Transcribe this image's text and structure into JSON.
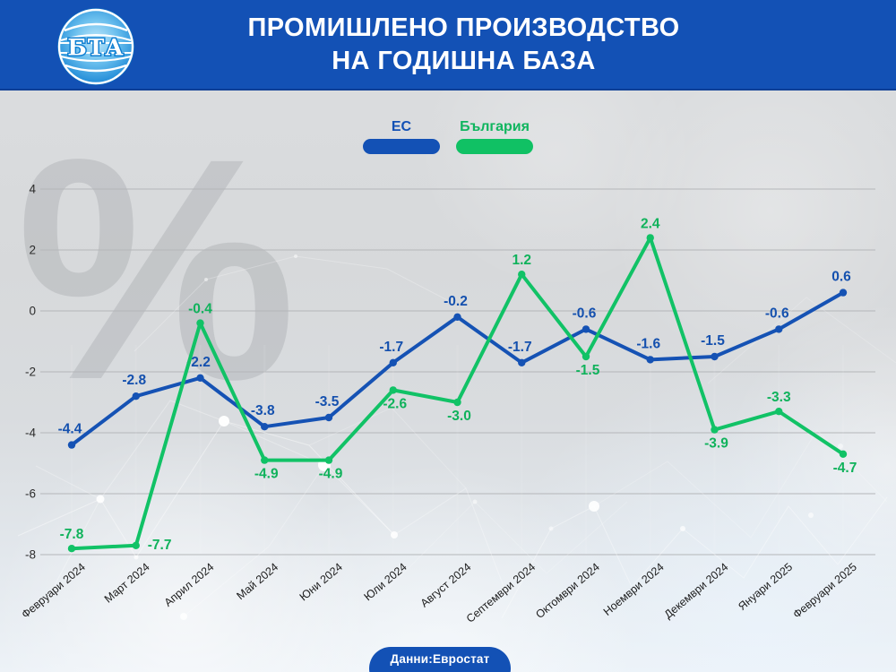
{
  "header": {
    "logo_text": "БТА",
    "title_line1": "ПРОМИШЛЕНО ПРОИЗВОДСТВО",
    "title_line2": "НА ГОДИШНА БАЗА"
  },
  "legend": [
    {
      "label": "ЕС",
      "color": "#1351b5"
    },
    {
      "label": "България",
      "color": "#10c164"
    }
  ],
  "footer": {
    "source_label": "Данни:Евростат"
  },
  "chart_data": {
    "type": "line",
    "title": "ПРОМИШЛЕНО ПРОИЗВОДСТВО НА ГОДИШНА БАЗА",
    "unit": "%",
    "watermark": "%",
    "grid": true,
    "legend_position": "top-center",
    "ylim": [
      -8.6,
      4.8
    ],
    "y_ticks": [
      4,
      2,
      0,
      -2,
      -4,
      -6,
      -8
    ],
    "categories": [
      "Февруари 2024",
      "Март 2024",
      "Април 2024",
      "Май 2024",
      "Юни 2024",
      "Юли 2024",
      "Август 2024",
      "Септември 2024",
      "Октомври 2024",
      "Ноември 2024",
      "Декември 2024",
      "Януари 2025",
      "Февруари 2025"
    ],
    "series": [
      {
        "name": "ЕС",
        "color": "#1552b4",
        "label_color": "#1450ae",
        "values": [
          -4.4,
          -2.8,
          -2.2,
          -3.8,
          -3.5,
          -1.7,
          -0.2,
          -1.7,
          -0.6,
          -1.6,
          -1.5,
          -0.6,
          0.6
        ],
        "label_side": [
          "above",
          "above",
          "above",
          "above",
          "above",
          "above",
          "above",
          "above",
          "above",
          "above",
          "above",
          "above",
          "above"
        ]
      },
      {
        "name": "България",
        "color": "#11c266",
        "label_color": "#0fb25b",
        "values": [
          -7.8,
          -7.7,
          -0.4,
          -4.9,
          -4.9,
          -2.6,
          -3.0,
          1.2,
          -1.5,
          2.4,
          -3.9,
          -3.3,
          -4.7
        ],
        "label_side": [
          "above",
          "right",
          "above",
          "below",
          "below",
          "below",
          "below",
          "above",
          "below",
          "above",
          "below",
          "above",
          "below"
        ]
      }
    ]
  }
}
